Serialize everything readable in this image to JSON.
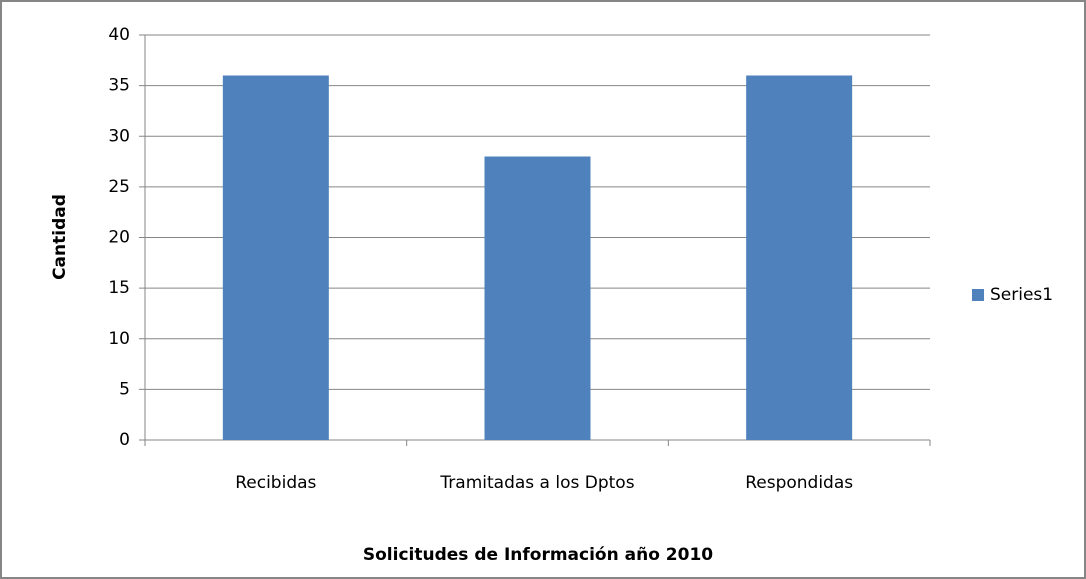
{
  "chart_data": {
    "type": "bar",
    "categories": [
      "Recibidas",
      "Tramitadas a los Dptos",
      "Respondidas"
    ],
    "series": [
      {
        "name": "Series1",
        "color": "#4f81bd",
        "values": [
          36,
          28,
          36
        ]
      }
    ],
    "ylim": [
      0,
      40
    ],
    "yticks": [
      0,
      5,
      10,
      15,
      20,
      25,
      30,
      35,
      40
    ],
    "grid": true,
    "ylabel": "Cantidad",
    "xlabel": "Solicitudes de Información año 2010",
    "legend": "right"
  }
}
